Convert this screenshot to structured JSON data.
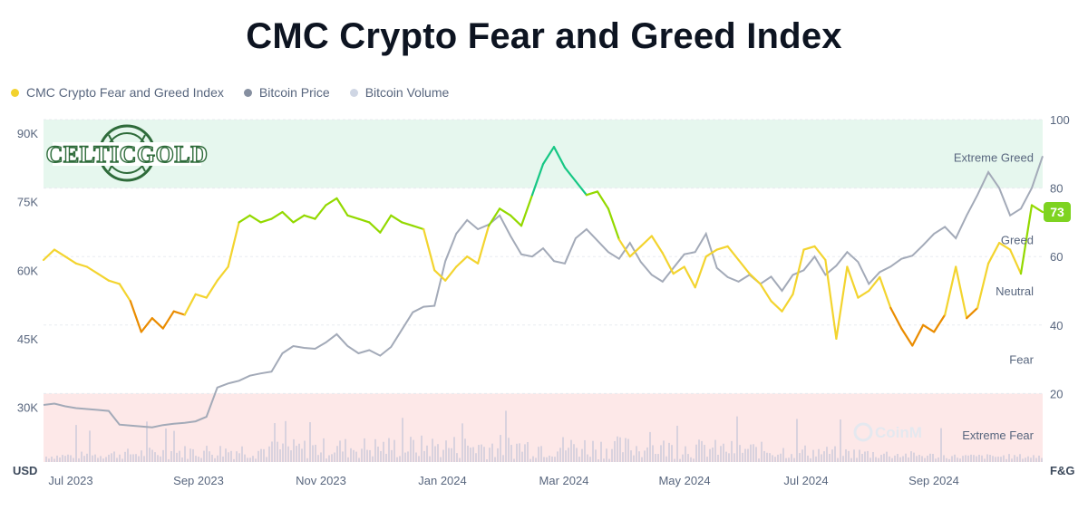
{
  "chart_data": {
    "type": "line",
    "title": "CMC Crypto Fear and Greed Index",
    "legend": [
      {
        "name": "CMC Crypto Fear and Greed Index",
        "color": "#f2d22e"
      },
      {
        "name": "Bitcoin Price",
        "color": "#868fa0"
      },
      {
        "name": "Bitcoin Volume",
        "color": "#cfd6e4"
      }
    ],
    "left_axis": {
      "label": "USD",
      "ticks": [
        "90K",
        "75K",
        "60K",
        "45K",
        "30K"
      ],
      "values": [
        90000,
        75000,
        60000,
        45000,
        30000
      ],
      "range": [
        18000,
        93000
      ]
    },
    "right_axis": {
      "label": "F&G",
      "ticks": [
        "100",
        "80",
        "60",
        "40",
        "20"
      ],
      "values": [
        100,
        80,
        60,
        40,
        20
      ],
      "range": [
        0,
        100
      ]
    },
    "x_ticks": [
      "Jul 2023",
      "Sep 2023",
      "Nov 2023",
      "Jan 2024",
      "Mar 2024",
      "May 2024",
      "Jul 2024",
      "Sep 2024"
    ],
    "zones": [
      {
        "label": "Extreme Greed",
        "from": 80,
        "to": 100,
        "color": "#e6f7ee"
      },
      {
        "label": "Greed",
        "level": 65
      },
      {
        "label": "Neutral",
        "level": 50
      },
      {
        "label": "Fear",
        "level": 30
      },
      {
        "label": "Extreme Fear",
        "from": 0,
        "to": 20,
        "color": "#fde8e8"
      }
    ],
    "current_fg": "73",
    "watermark": "CoinM",
    "series": [
      {
        "name": "CMC Crypto Fear and Greed Index",
        "x": [
          0,
          4,
          8,
          12,
          16,
          20,
          24,
          28,
          32,
          36,
          40,
          44,
          48,
          52,
          56,
          60,
          64,
          68,
          72,
          76,
          80,
          84,
          88,
          92,
          96,
          100,
          104,
          108,
          112,
          116,
          120,
          124,
          128,
          132,
          136,
          140,
          144,
          148,
          152,
          156,
          160,
          164,
          168,
          172,
          176,
          180,
          184,
          188,
          192,
          196,
          200,
          204,
          208,
          212,
          216,
          220,
          224,
          228,
          232,
          236,
          240,
          244,
          248,
          252,
          256,
          260,
          264,
          268,
          272,
          276,
          280,
          284,
          288,
          292,
          296,
          300,
          304,
          308,
          312,
          316,
          320,
          324,
          328,
          332,
          336,
          340,
          344,
          348,
          352,
          356,
          360,
          364,
          368
        ],
        "y": [
          59,
          62,
          60,
          58,
          57,
          55,
          53,
          52,
          47,
          38,
          42,
          39,
          44,
          43,
          49,
          48,
          53,
          57,
          70,
          72,
          70,
          71,
          73,
          70,
          72,
          71,
          75,
          77,
          72,
          71,
          70,
          67,
          72,
          70,
          69,
          68,
          56,
          53,
          57,
          60,
          58,
          69,
          74,
          72,
          69,
          78,
          87,
          92,
          86,
          82,
          78,
          79,
          74,
          65,
          60,
          63,
          66,
          61,
          55,
          57,
          51,
          60,
          62,
          63,
          59,
          55,
          52,
          47,
          44,
          49,
          62,
          63,
          59,
          36,
          57,
          48,
          50,
          54,
          45,
          39,
          34,
          40,
          38,
          43,
          57,
          42,
          45,
          58,
          64,
          62,
          55,
          75,
          73
        ]
      },
      {
        "name": "Bitcoin Price",
        "x": [
          0,
          4,
          8,
          12,
          16,
          20,
          24,
          28,
          32,
          36,
          40,
          44,
          48,
          52,
          56,
          60,
          64,
          68,
          72,
          76,
          80,
          84,
          88,
          92,
          96,
          100,
          104,
          108,
          112,
          116,
          120,
          124,
          128,
          132,
          136,
          140,
          144,
          148,
          152,
          156,
          160,
          164,
          168,
          172,
          176,
          180,
          184,
          188,
          192,
          196,
          200,
          204,
          208,
          212,
          216,
          220,
          224,
          228,
          232,
          236,
          240,
          244,
          248,
          252,
          256,
          260,
          264,
          268,
          272,
          276,
          280,
          284,
          288,
          292,
          296,
          300,
          304,
          308,
          312,
          316,
          320,
          324,
          328,
          332,
          336,
          340,
          344,
          348,
          352,
          356,
          360,
          364,
          368
        ],
        "y": [
          30500,
          30800,
          30200,
          29800,
          29600,
          29400,
          29200,
          26200,
          26000,
          25800,
          25600,
          26100,
          26400,
          26600,
          26900,
          27900,
          34300,
          35200,
          35800,
          36900,
          37400,
          37800,
          41800,
          43400,
          43000,
          42800,
          44200,
          46000,
          43400,
          41800,
          42500,
          41300,
          43200,
          47000,
          50800,
          52000,
          52200,
          62000,
          68000,
          71000,
          69000,
          70000,
          72000,
          67500,
          63500,
          63000,
          64800,
          62000,
          61500,
          67000,
          69000,
          66500,
          64000,
          62500,
          66000,
          61800,
          59000,
          57500,
          60500,
          63500,
          64000,
          68000,
          60500,
          58500,
          57500,
          59000,
          57000,
          58600,
          55500,
          59000,
          60000,
          63000,
          59000,
          61000,
          64000,
          61800,
          57000,
          59600,
          60800,
          62500,
          63200,
          65500,
          68000,
          69500,
          67000,
          72000,
          76500,
          81500,
          78000,
          72000,
          73500,
          78000,
          85000
        ]
      },
      {
        "name": "Bitcoin Volume",
        "note": "relative volume bars along the bottom strip"
      }
    ]
  }
}
